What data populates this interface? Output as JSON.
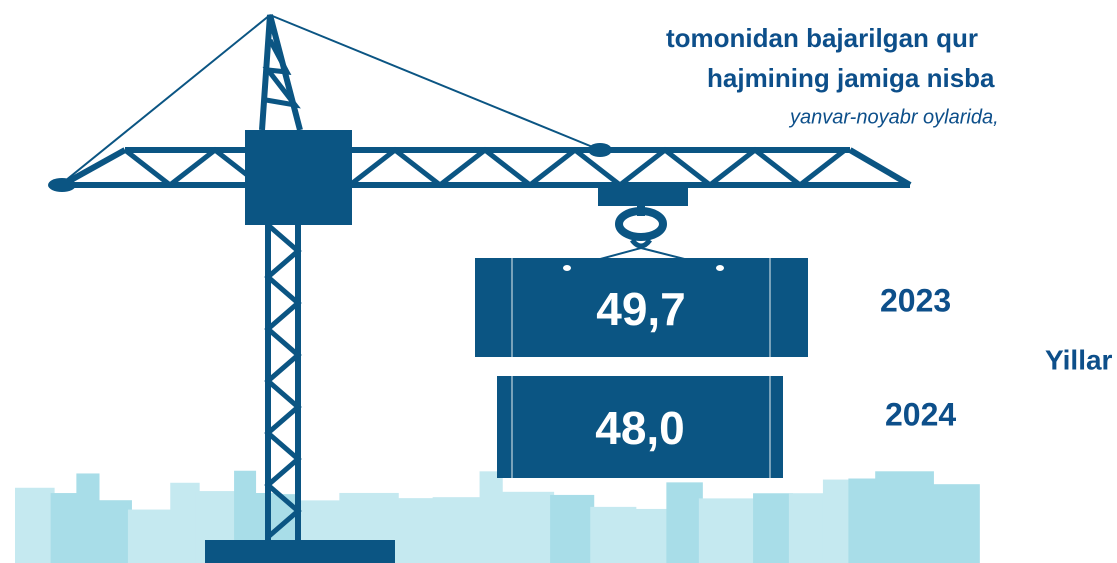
{
  "title_lines": [
    "tomonidan bajarilgan qur",
    "hajmining jamiga nisba"
  ],
  "subtitle": "yanvar-noyabr oylarida,",
  "items": [
    {
      "year": "2023",
      "value": "49,7"
    },
    {
      "year": "2024",
      "value": "48,0"
    }
  ],
  "axis_label": "Yillar"
}
